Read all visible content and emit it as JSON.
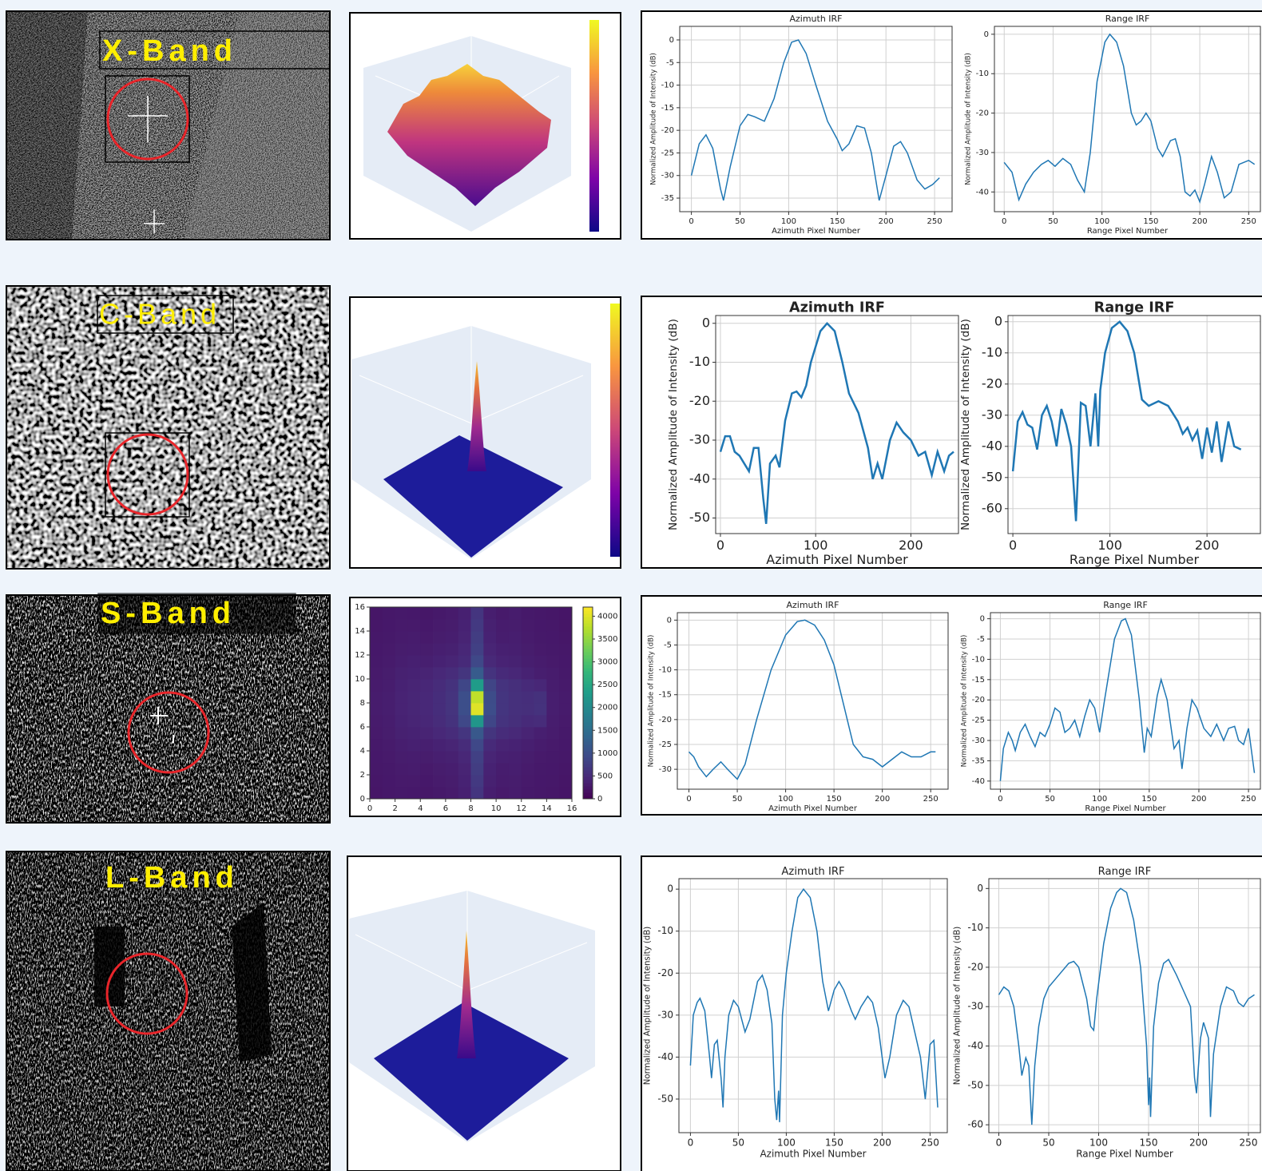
{
  "bands": [
    "X-Band",
    "C-Band",
    "S-Band",
    "L-Band"
  ],
  "chart_data": [
    {
      "type": "line",
      "title": "Azimuth IRF",
      "xlabel": "Azimuth Pixel Number",
      "ylabel": "Normalized Amplitude of Intensity (dB)",
      "color": "#1f77b4",
      "grid": true,
      "xlim": [
        -12,
        268
      ],
      "ylim": [
        -38,
        3
      ],
      "xticks": [
        0,
        50,
        100,
        150,
        200,
        250
      ],
      "yticks": [
        0,
        -5,
        -10,
        -15,
        -20,
        -25,
        -30,
        -35
      ],
      "x": [
        0,
        8,
        15,
        22,
        30,
        33,
        40,
        50,
        58,
        65,
        75,
        85,
        95,
        103,
        110,
        118,
        128,
        140,
        150,
        155,
        162,
        170,
        178,
        185,
        193,
        200,
        208,
        215,
        222,
        232,
        240,
        248,
        255
      ],
      "values": [
        -30,
        -23,
        -21,
        -24,
        -33,
        -35.5,
        -28,
        -19,
        -16.5,
        -17,
        -18,
        -13,
        -5,
        -0.5,
        0,
        -3,
        -10,
        -18,
        -22,
        -24.5,
        -23,
        -19,
        -19.5,
        -25,
        -35.5,
        -30,
        -23.5,
        -22.5,
        -25,
        -31,
        -33,
        -32,
        -30.5
      ]
    },
    {
      "type": "line",
      "title": "Range IRF",
      "xlabel": "Range Pixel Number",
      "ylabel": "Normalized Amplitude of Intensity (dB)",
      "color": "#1f77b4",
      "grid": true,
      "xlim": [
        -10,
        262
      ],
      "ylim": [
        -45,
        2
      ],
      "xticks": [
        0,
        50,
        100,
        150,
        200,
        250
      ],
      "yticks": [
        0,
        -10,
        -20,
        -30,
        -40
      ],
      "x": [
        0,
        8,
        15,
        22,
        30,
        38,
        45,
        52,
        60,
        68,
        75,
        82,
        88,
        95,
        103,
        108,
        115,
        122,
        130,
        135,
        140,
        145,
        150,
        157,
        162,
        170,
        175,
        180,
        185,
        190,
        195,
        200,
        205,
        212,
        218,
        225,
        232,
        240,
        250,
        256
      ],
      "values": [
        -32.5,
        -35,
        -42,
        -38,
        -35,
        -33,
        -32,
        -33.5,
        -31.5,
        -33,
        -37,
        -40,
        -30,
        -12,
        -2,
        0,
        -2,
        -8,
        -20,
        -23,
        -22,
        -20,
        -22,
        -29,
        -31,
        -27,
        -26.5,
        -31,
        -40,
        -41,
        -39.5,
        -42.5,
        -38,
        -31,
        -35,
        -41.5,
        -40,
        -33,
        -32,
        -33
      ]
    },
    {
      "type": "line",
      "title": "Azimuth IRF",
      "xlabel": "Azimuth Pixel Number",
      "ylabel": "Normalized Amplitude of Intensity (dB)",
      "color": "#1f77b4",
      "grid": true,
      "xlim": [
        -5,
        250
      ],
      "ylim": [
        -54,
        2
      ],
      "xticks": [
        0,
        100,
        200
      ],
      "yticks": [
        0,
        -10,
        -20,
        -30,
        -40,
        -50
      ],
      "x": [
        0,
        5,
        10,
        15,
        20,
        25,
        30,
        35,
        40,
        45,
        48,
        52,
        58,
        62,
        68,
        75,
        80,
        85,
        90,
        95,
        105,
        112,
        120,
        128,
        135,
        145,
        155,
        160,
        165,
        170,
        178,
        185,
        192,
        200,
        208,
        215,
        222,
        228,
        235,
        240,
        245
      ],
      "values": [
        -33,
        -29,
        -29,
        -33,
        -34,
        -36,
        -38,
        -32,
        -32,
        -45,
        -51.5,
        -36,
        -34,
        -37,
        -25,
        -18,
        -17.5,
        -19,
        -16,
        -10,
        -2,
        0,
        -2,
        -10,
        -18,
        -23,
        -32,
        -40,
        -36,
        -40,
        -30,
        -25.5,
        -28,
        -30,
        -34,
        -33,
        -39,
        -33,
        -38,
        -34,
        -33
      ]
    },
    {
      "type": "line",
      "title": "Range IRF",
      "xlabel": "Range Pixel Number",
      "ylabel": "Normalized Amplitude of Intensity (dB)",
      "color": "#1f77b4",
      "grid": true,
      "xlim": [
        -5,
        255
      ],
      "ylim": [
        -68,
        2
      ],
      "xticks": [
        0,
        100,
        200
      ],
      "yticks": [
        0,
        -10,
        -20,
        -30,
        -40,
        -50,
        -60
      ],
      "x": [
        0,
        5,
        10,
        15,
        20,
        25,
        30,
        35,
        40,
        45,
        50,
        55,
        60,
        65,
        70,
        75,
        80,
        85,
        88,
        90,
        95,
        102,
        110,
        118,
        125,
        133,
        140,
        150,
        160,
        170,
        175,
        180,
        185,
        190,
        195,
        200,
        205,
        210,
        215,
        222,
        228,
        235
      ],
      "values": [
        -48,
        -32,
        -29,
        -33,
        -34,
        -41,
        -30,
        -27,
        -32,
        -40,
        -28,
        -33,
        -40,
        -64,
        -26,
        -27,
        -40,
        -23,
        -40,
        -22,
        -10,
        -2,
        0,
        -3,
        -10,
        -25,
        -27,
        -25.5,
        -27,
        -32,
        -36,
        -34,
        -38,
        -35,
        -44,
        -34,
        -42,
        -32,
        -45,
        -32,
        -40,
        -41
      ]
    },
    {
      "type": "line",
      "title": "Azimuth IRF",
      "xlabel": "Azimuth Pixel Number",
      "ylabel": "Normalized Amplitude of Intensity (dB)",
      "color": "#1f77b4",
      "grid": true,
      "xlim": [
        -12,
        268
      ],
      "ylim": [
        -34,
        1.5
      ],
      "xticks": [
        0,
        50,
        100,
        150,
        200,
        250
      ],
      "yticks": [
        0,
        -5,
        -10,
        -15,
        -20,
        -25,
        -30
      ],
      "x": [
        0,
        5,
        10,
        18,
        25,
        33,
        40,
        50,
        58,
        70,
        85,
        100,
        112,
        120,
        130,
        140,
        150,
        160,
        170,
        180,
        190,
        200,
        210,
        220,
        230,
        240,
        250,
        255
      ],
      "values": [
        -26.5,
        -27.5,
        -29.5,
        -31.5,
        -30,
        -28.5,
        -30,
        -32,
        -29,
        -20,
        -10,
        -3,
        -0.3,
        0,
        -1,
        -4,
        -9,
        -17,
        -25,
        -27.5,
        -28,
        -29.5,
        -28,
        -26.5,
        -27.5,
        -27.5,
        -26.5,
        -26.5
      ]
    },
    {
      "type": "line",
      "title": "Range IRF",
      "xlabel": "Range Pixel Number",
      "ylabel": "Normalized Amplitude of Intensity (dB)",
      "color": "#1f77b4",
      "grid": true,
      "xlim": [
        -10,
        262
      ],
      "ylim": [
        -42,
        1.5
      ],
      "xticks": [
        0,
        50,
        100,
        150,
        200,
        250
      ],
      "yticks": [
        0,
        -5,
        -10,
        -15,
        -20,
        -25,
        -30,
        -35,
        -40
      ],
      "x": [
        0,
        3,
        8,
        12,
        15,
        20,
        25,
        30,
        35,
        40,
        45,
        50,
        55,
        60,
        65,
        70,
        75,
        80,
        85,
        90,
        95,
        100,
        105,
        115,
        122,
        126,
        132,
        140,
        145,
        148,
        152,
        158,
        162,
        168,
        175,
        180,
        183,
        188,
        193,
        198,
        205,
        212,
        218,
        225,
        230,
        236,
        240,
        245,
        250,
        256
      ],
      "values": [
        -40,
        -32,
        -28,
        -30,
        -32.5,
        -28,
        -26,
        -29,
        -31.5,
        -28,
        -29,
        -26,
        -22,
        -23,
        -28,
        -27,
        -25,
        -29,
        -24,
        -20,
        -22,
        -28,
        -20,
        -5,
        -0.5,
        0,
        -4,
        -20,
        -33,
        -27,
        -29,
        -19,
        -15,
        -20,
        -32,
        -30,
        -37,
        -27,
        -20,
        -22,
        -27,
        -29,
        -26,
        -30,
        -27,
        -26.5,
        -30,
        -31,
        -27,
        -38
      ]
    },
    {
      "type": "line",
      "title": "Azimuth IRF",
      "xlabel": "Azimuth Pixel Number",
      "ylabel": "Normalized Amplitude of Intensity (dB)",
      "color": "#1f77b4",
      "grid": true,
      "xlim": [
        -12,
        268
      ],
      "ylim": [
        -58,
        2.5
      ],
      "xticks": [
        0,
        50,
        100,
        150,
        200,
        250
      ],
      "yticks": [
        0,
        -10,
        -20,
        -30,
        -40,
        -50
      ],
      "x": [
        0,
        3,
        7,
        10,
        15,
        20,
        22,
        25,
        28,
        32,
        34,
        36,
        40,
        45,
        50,
        57,
        62,
        70,
        75,
        80,
        85,
        88,
        90,
        92,
        93,
        96,
        100,
        106,
        112,
        118,
        125,
        132,
        138,
        144,
        150,
        155,
        160,
        168,
        172,
        178,
        185,
        190,
        196,
        200,
        203,
        208,
        215,
        222,
        228,
        235,
        240,
        245,
        250,
        254,
        258
      ],
      "values": [
        -42,
        -30,
        -27,
        -26,
        -29,
        -40,
        -45,
        -37,
        -36,
        -45,
        -52,
        -40,
        -30,
        -26.5,
        -28,
        -34,
        -31,
        -22,
        -20.5,
        -24,
        -32,
        -50,
        -55,
        -48,
        -55.5,
        -30,
        -20,
        -10,
        -2,
        0,
        -2,
        -10,
        -22,
        -29,
        -24,
        -22,
        -24,
        -29,
        -31,
        -28,
        -25.5,
        -27,
        -33,
        -40,
        -45,
        -40,
        -30,
        -26.5,
        -28,
        -35,
        -40,
        -50,
        -37,
        -36,
        -52
      ]
    },
    {
      "type": "line",
      "title": "Range IRF",
      "xlabel": "Range Pixel Number",
      "ylabel": "Normalized Amplitude of Intensity (dB)",
      "color": "#1f77b4",
      "grid": true,
      "xlim": [
        -10,
        262
      ],
      "ylim": [
        -62,
        2.5
      ],
      "xticks": [
        0,
        50,
        100,
        150,
        200,
        250
      ],
      "yticks": [
        0,
        -10,
        -20,
        -30,
        -40,
        -50,
        -60
      ],
      "x": [
        0,
        5,
        10,
        15,
        20,
        23,
        27,
        30,
        33,
        36,
        40,
        45,
        50,
        60,
        70,
        75,
        80,
        88,
        92,
        95,
        98,
        105,
        112,
        118,
        122,
        128,
        135,
        142,
        148,
        150,
        151,
        152,
        155,
        160,
        165,
        170,
        178,
        185,
        192,
        196,
        198,
        202,
        205,
        210,
        212,
        215,
        222,
        228,
        235,
        240,
        245,
        250,
        256
      ],
      "values": [
        -27,
        -25,
        -26,
        -30,
        -40,
        -47.5,
        -43,
        -45,
        -60,
        -45,
        -35,
        -28,
        -25,
        -22,
        -19,
        -18.5,
        -20,
        -28,
        -35,
        -36,
        -28,
        -14,
        -5,
        -1,
        0,
        -1,
        -8,
        -20,
        -40,
        -55,
        -48,
        -58,
        -35,
        -24,
        -19,
        -18,
        -22,
        -26,
        -30,
        -48,
        -52,
        -38,
        -34,
        -38,
        -58,
        -42,
        -30,
        -25,
        -26,
        -29,
        -30,
        -28,
        -27
      ]
    },
    {
      "type": "heatmap",
      "colormap": "viridis",
      "xlim": [
        0,
        16
      ],
      "ylim": [
        0,
        16
      ],
      "xticks": [
        0,
        2,
        4,
        6,
        8,
        10,
        12,
        14,
        16
      ],
      "yticks": [
        0,
        2,
        4,
        6,
        8,
        10,
        12,
        14,
        16
      ],
      "clim": [
        0,
        4200
      ],
      "cticks": [
        0,
        500,
        1000,
        1500,
        2000,
        2500,
        3000,
        3500,
        4000
      ],
      "values": [
        [
          250,
          270,
          290,
          280,
          260,
          290,
          310,
          370,
          650,
          350,
          300,
          320,
          290,
          270,
          260,
          240
        ],
        [
          260,
          280,
          300,
          300,
          280,
          310,
          330,
          400,
          700,
          380,
          320,
          330,
          300,
          280,
          270,
          250
        ],
        [
          270,
          290,
          310,
          320,
          300,
          330,
          350,
          420,
          750,
          400,
          340,
          350,
          310,
          290,
          280,
          260
        ],
        [
          280,
          300,
          330,
          340,
          330,
          360,
          380,
          450,
          800,
          430,
          370,
          360,
          330,
          300,
          290,
          270
        ],
        [
          290,
          310,
          350,
          370,
          360,
          400,
          430,
          520,
          900,
          500,
          420,
          400,
          360,
          320,
          300,
          280
        ],
        [
          300,
          330,
          380,
          400,
          420,
          470,
          520,
          650,
          1150,
          640,
          520,
          480,
          420,
          360,
          320,
          290
        ],
        [
          310,
          340,
          400,
          430,
          460,
          520,
          600,
          900,
          2200,
          880,
          620,
          560,
          500,
          520,
          340,
          300
        ],
        [
          320,
          350,
          410,
          440,
          470,
          540,
          630,
          1000,
          4000,
          980,
          650,
          580,
          560,
          600,
          350,
          310
        ],
        [
          320,
          350,
          410,
          440,
          470,
          540,
          630,
          1000,
          3800,
          970,
          650,
          580,
          550,
          590,
          350,
          310
        ],
        [
          310,
          340,
          400,
          430,
          460,
          520,
          600,
          880,
          2300,
          860,
          620,
          560,
          500,
          450,
          340,
          300
        ],
        [
          300,
          330,
          380,
          400,
          420,
          470,
          520,
          640,
          1200,
          620,
          500,
          460,
          400,
          350,
          320,
          290
        ],
        [
          290,
          310,
          350,
          370,
          360,
          400,
          430,
          500,
          900,
          480,
          410,
          390,
          350,
          320,
          300,
          280
        ],
        [
          280,
          300,
          330,
          340,
          330,
          360,
          380,
          450,
          800,
          430,
          370,
          360,
          330,
          300,
          290,
          270
        ],
        [
          270,
          290,
          310,
          320,
          300,
          330,
          350,
          420,
          750,
          400,
          340,
          350,
          310,
          290,
          280,
          260
        ],
        [
          260,
          280,
          300,
          300,
          280,
          310,
          330,
          400,
          700,
          380,
          320,
          330,
          300,
          280,
          270,
          250
        ],
        [
          250,
          270,
          290,
          280,
          260,
          290,
          310,
          370,
          650,
          350,
          300,
          320,
          290,
          270,
          260,
          240
        ]
      ]
    }
  ]
}
